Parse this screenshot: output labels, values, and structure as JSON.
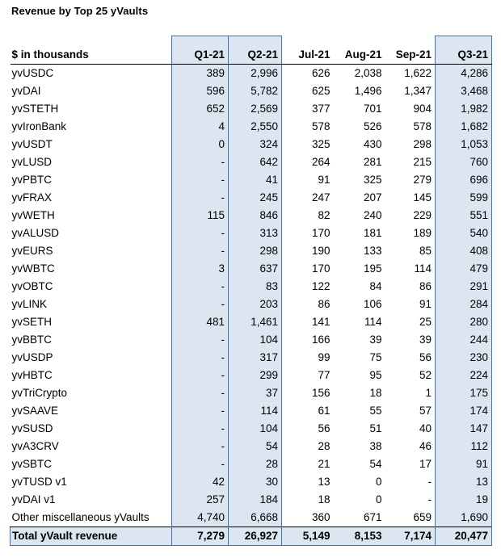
{
  "title": "Revenue by Top 25 yVaults",
  "header": {
    "label": "$ in thousands",
    "columns": [
      "Q1-21",
      "Q2-21",
      "Jul-21",
      "Aug-21",
      "Sep-21",
      "Q3-21"
    ]
  },
  "rows": [
    {
      "name": "yvUSDC",
      "values": [
        "389",
        "2,996",
        "626",
        "2,038",
        "1,622",
        "4,286"
      ]
    },
    {
      "name": "yvDAI",
      "values": [
        "596",
        "5,782",
        "625",
        "1,496",
        "1,347",
        "3,468"
      ]
    },
    {
      "name": "yvSTETH",
      "values": [
        "652",
        "2,569",
        "377",
        "701",
        "904",
        "1,982"
      ]
    },
    {
      "name": "yvIronBank",
      "values": [
        "4",
        "2,550",
        "578",
        "526",
        "578",
        "1,682"
      ]
    },
    {
      "name": "yvUSDT",
      "values": [
        "0",
        "324",
        "325",
        "430",
        "298",
        "1,053"
      ]
    },
    {
      "name": "yvLUSD",
      "values": [
        "-",
        "642",
        "264",
        "281",
        "215",
        "760"
      ]
    },
    {
      "name": "yvPBTC",
      "values": [
        "-",
        "41",
        "91",
        "325",
        "279",
        "696"
      ]
    },
    {
      "name": "yvFRAX",
      "values": [
        "-",
        "245",
        "247",
        "207",
        "145",
        "599"
      ]
    },
    {
      "name": "yvWETH",
      "values": [
        "115",
        "846",
        "82",
        "240",
        "229",
        "551"
      ]
    },
    {
      "name": "yvALUSD",
      "values": [
        "-",
        "313",
        "170",
        "181",
        "189",
        "540"
      ]
    },
    {
      "name": "yvEURS",
      "values": [
        "-",
        "298",
        "190",
        "133",
        "85",
        "408"
      ]
    },
    {
      "name": "yvWBTC",
      "values": [
        "3",
        "637",
        "170",
        "195",
        "114",
        "479"
      ]
    },
    {
      "name": "yvOBTC",
      "values": [
        "-",
        "83",
        "122",
        "84",
        "86",
        "291"
      ]
    },
    {
      "name": "yvLINK",
      "values": [
        "-",
        "203",
        "86",
        "106",
        "91",
        "284"
      ]
    },
    {
      "name": "yvSETH",
      "values": [
        "481",
        "1,461",
        "141",
        "114",
        "25",
        "280"
      ]
    },
    {
      "name": "yvBBTC",
      "values": [
        "-",
        "104",
        "166",
        "39",
        "39",
        "244"
      ]
    },
    {
      "name": "yvUSDP",
      "values": [
        "-",
        "317",
        "99",
        "75",
        "56",
        "230"
      ]
    },
    {
      "name": "yvHBTC",
      "values": [
        "-",
        "299",
        "77",
        "95",
        "52",
        "224"
      ]
    },
    {
      "name": "yvTriCrypto",
      "values": [
        "-",
        "37",
        "156",
        "18",
        "1",
        "175"
      ]
    },
    {
      "name": "yvSAAVE",
      "values": [
        "-",
        "114",
        "61",
        "55",
        "57",
        "174"
      ]
    },
    {
      "name": "yvSUSD",
      "values": [
        "-",
        "104",
        "56",
        "51",
        "40",
        "147"
      ]
    },
    {
      "name": "yvA3CRV",
      "values": [
        "-",
        "54",
        "28",
        "38",
        "46",
        "112"
      ]
    },
    {
      "name": "yvSBTC",
      "values": [
        "-",
        "28",
        "21",
        "54",
        "17",
        "91"
      ]
    },
    {
      "name": "yvTUSD v1",
      "values": [
        "42",
        "30",
        "13",
        "0",
        "-",
        "13"
      ]
    },
    {
      "name": "yvDAI v1",
      "values": [
        "257",
        "184",
        "18",
        "0",
        "-",
        "19"
      ]
    },
    {
      "name": "Other miscellaneous yVaults",
      "values": [
        "4,740",
        "6,668",
        "360",
        "671",
        "659",
        "1,690"
      ]
    }
  ],
  "total": {
    "name": "Total yVault revenue",
    "values": [
      "7,279",
      "26,927",
      "5,149",
      "8,153",
      "7,174",
      "20,477"
    ]
  },
  "colors": {
    "highlight_fill": "#dce6f1",
    "highlight_border": "#4f6f95"
  }
}
